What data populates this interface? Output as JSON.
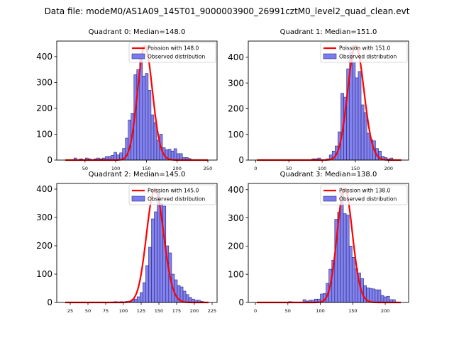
{
  "chart_data": {
    "type": "bar",
    "suptitle": "Data file: modeM0/AS1A09_145T01_9000003900_26991cztM0_level2_quad_clean.evt",
    "colors": {
      "bar_fill": "#7b7bf0",
      "bar_edge": "#2a2a6e",
      "poisson_line": "#ff0000"
    },
    "panels": [
      {
        "title": "Quadrant 0: Median=148.0",
        "legend": [
          "Poission with 148.0",
          "Observed distribution"
        ],
        "legend_position": "top-right",
        "xlim": [
          4,
          265
        ],
        "ylim": [
          0,
          460
        ],
        "xticks": [
          50,
          100,
          150,
          200,
          250
        ],
        "yticks": [
          0,
          100,
          200,
          300,
          400
        ],
        "median": 148.0,
        "peak": 440,
        "bin_start": 18,
        "bin_width": 4.65,
        "values": [
          0,
          0,
          0,
          8,
          0,
          5,
          0,
          8,
          5,
          0,
          5,
          8,
          5,
          8,
          14,
          14,
          18,
          30,
          20,
          28,
          45,
          85,
          155,
          180,
          330,
          350,
          410,
          325,
          335,
          270,
          175,
          145,
          77,
          100,
          48,
          40,
          42,
          35,
          44,
          25,
          25,
          10,
          10,
          6,
          2,
          2,
          1,
          1,
          1,
          0
        ]
      },
      {
        "title": "Quadrant 1: Median=151.0",
        "legend": [
          "Poission with 151.0",
          "Observed distribution"
        ],
        "legend_position": "top-right",
        "xlim": [
          -11,
          230
        ],
        "ylim": [
          0,
          463
        ],
        "xticks": [
          0,
          50,
          100,
          150,
          200
        ],
        "yticks": [
          0,
          100,
          200,
          300,
          400
        ],
        "median": 151.0,
        "peak": 445,
        "bin_start": 2,
        "bin_width": 4.35,
        "values": [
          0,
          0,
          0,
          0,
          0,
          0,
          0,
          0,
          0,
          0,
          0,
          0,
          0,
          0,
          0,
          0,
          0,
          0,
          0,
          5,
          5,
          8,
          0,
          0,
          5,
          20,
          35,
          55,
          110,
          260,
          245,
          355,
          420,
          380,
          320,
          345,
          215,
          185,
          105,
          80,
          75,
          45,
          35,
          15,
          10,
          5,
          8,
          0,
          0,
          0
        ]
      },
      {
        "title": "Quadrant 2: Median=145.0",
        "legend": [
          "Poission with 145.0",
          "Observed distribution"
        ],
        "legend_position": "top-right",
        "xlim": [
          6,
          232
        ],
        "ylim": [
          0,
          420
        ],
        "xticks": [
          25,
          50,
          75,
          100,
          125,
          150,
          175,
          200,
          225
        ],
        "yticks": [
          0,
          100,
          200,
          300,
          400
        ],
        "median": 145.0,
        "peak": 400,
        "bin_start": 18,
        "bin_width": 4.05,
        "values": [
          0,
          0,
          0,
          0,
          0,
          0,
          0,
          0,
          0,
          0,
          0,
          0,
          0,
          0,
          0,
          0,
          2,
          3,
          2,
          3,
          2,
          4,
          5,
          10,
          12,
          20,
          35,
          70,
          130,
          195,
          295,
          320,
          390,
          350,
          340,
          200,
          175,
          100,
          80,
          60,
          55,
          40,
          28,
          18,
          12,
          8,
          8,
          4,
          2,
          0
        ]
      },
      {
        "title": "Quadrant 3: Median=138.0",
        "legend": [
          "Poission with 138.0",
          "Observed distribution"
        ],
        "legend_position": "top-right",
        "xlim": [
          -11,
          236
        ],
        "ylim": [
          0,
          422
        ],
        "xticks": [
          0,
          50,
          100,
          150,
          200
        ],
        "yticks": [
          0,
          100,
          200,
          300,
          400
        ],
        "median": 138.0,
        "peak": 405,
        "bin_start": 2,
        "bin_width": 4.45,
        "values": [
          0,
          0,
          0,
          0,
          0,
          0,
          0,
          0,
          0,
          0,
          0,
          3,
          2,
          0,
          0,
          0,
          10,
          5,
          8,
          8,
          12,
          12,
          30,
          32,
          68,
          118,
          150,
          295,
          320,
          390,
          315,
          310,
          200,
          160,
          120,
          105,
          85,
          60,
          52,
          50,
          48,
          45,
          45,
          25,
          20,
          22,
          10,
          10,
          2,
          0
        ]
      }
    ]
  }
}
